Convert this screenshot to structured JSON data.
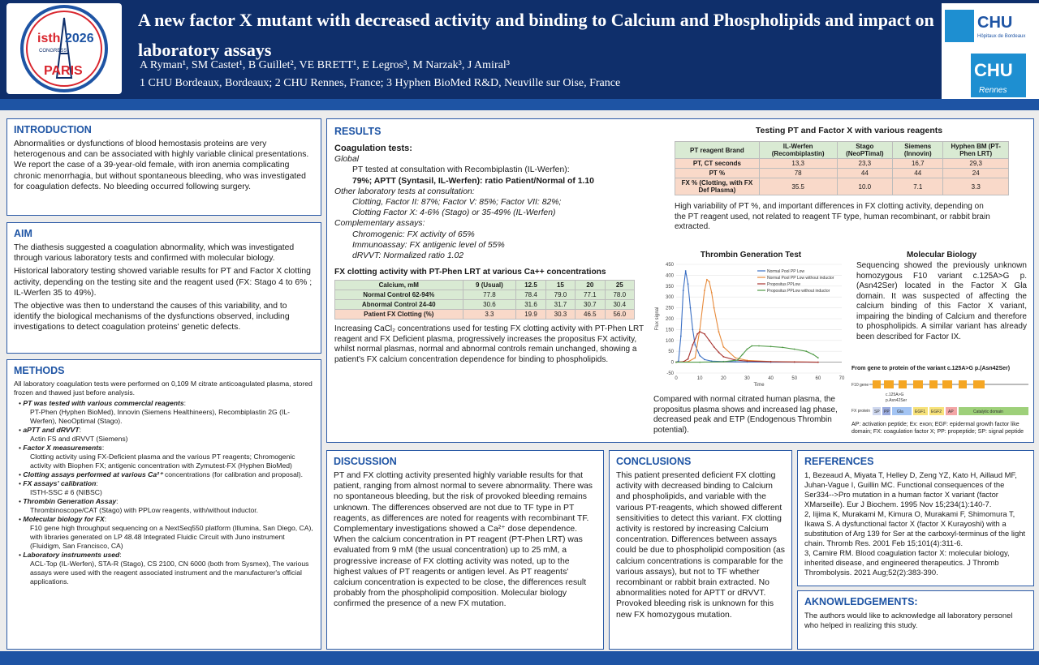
{
  "header": {
    "title": "A new factor X mutant with decreased activity and binding to Calcium and Phospholipids and impact on laboratory assays",
    "authors": "A Ryman¹, SM Castet¹, B Guillet², VE BRETT¹, E Legros³, M Narzak³, J Amiral³",
    "affiliations": "1 CHU Bordeaux, Bordeaux; 2 CHU Rennes, France; 3 Hyphen BioMed R&D, Neuville sur Oise, France",
    "logo_left": {
      "line1": "isth",
      "line2": "2026",
      "line3": "CONGRESS",
      "line4": "PARIS"
    },
    "logo_right": {
      "top1": "CHU",
      "top2": "Hôpitaux de Bordeaux",
      "bottom1": "CHU",
      "bottom2": "Rennes"
    }
  },
  "introduction": {
    "heading": "INTRODUCTION",
    "text": "Abnormalities or dysfunctions of blood hemostasis proteins are very heterogenous and can be associated with highly variable clinical presentations. We report the case of a 39-year-old female, with iron anemia complicating chronic menorrhagia, but without spontaneous bleeding, who was investigated for coagulation defects. No bleeding occurred following surgery."
  },
  "aim": {
    "heading": "AIM",
    "p1": "The diathesis suggested a coagulation abnormality, which was investigated through various laboratory tests and confirmed with molecular biology.",
    "p2": "Historical laboratory testing showed variable results for PT and Factor X clotting activity, depending on the testing site and the reagent used (FX: Stago 4 to 6% ; IL-Werfen 35 to 49%).",
    "p3": "The objective was then to understand the causes of this variability, and to identify the biological mechanisms of the dysfunctions observed, including investigations to detect coagulation proteins' genetic defects."
  },
  "methods": {
    "heading": "METHODS",
    "intro": "All laboratory coagulation tests were performed on 0,109 M citrate anticoagulated plasma, stored frozen and thawed just before analysis.",
    "items": [
      {
        "head": "PT was tested with various commercial reagents",
        "tail": ":",
        "sub": "PT-Phen (Hyphen BioMed), Innovin (Siemens Healthineers), Recombiplastin 2G (IL-Werfen), NeoOptimal (Stago)."
      },
      {
        "head": "aPTT and dRVVT",
        "tail": ":",
        "sub": "Actin FS and dRVVT (Siemens)"
      },
      {
        "head": "Factor X measurements",
        "tail": ":",
        "sub": "Clotting activity using FX-Deficient plasma and the various PT reagents; Chromogenic activity with Biophen FX; antigenic concentration with Zymutest-FX (Hyphen BioMed)"
      },
      {
        "head": "Clotting assays performed at various Ca²⁺",
        "tail": " concentrations (for calibration and proposal).",
        "sub": ""
      },
      {
        "head": "FX assays' calibration",
        "tail": ":",
        "sub": "ISTH-SSC # 6 (NIBSC)"
      },
      {
        "head": "Thrombin Generation Assay",
        "tail": ":",
        "sub": "Thrombinoscope/CAT (Stago) with PPLow reagents, with/without inductor."
      },
      {
        "head": "Molecular biology for FX",
        "tail": ":",
        "sub": "F10 gene high throughput sequencing on a NextSeq550 platform (Illumina, San Diego, CA), with libraries generated on LP 48.48 Integrated Fluidic Circuit with Juno instrument (Fluidigm, San Francisco, CA)"
      },
      {
        "head": "Laboratory instruments used",
        "tail": ":",
        "sub": "ACL-Top (IL-Werfen), STA-R (Stago), CS 2100, CN 6000 (both from Sysmex), The various assays were used with the reagent associated instrument and the manufacturer's official applications."
      }
    ]
  },
  "results": {
    "heading": "RESULTS",
    "coag_heading": "Coagulation tests:",
    "global_label": "Global",
    "global_line1": "PT tested at consultation with Recombiplastin (IL-Werfen):",
    "global_line2": "79%; APTT (Syntasil, IL-Werfen): ratio Patient/Normal of 1.10",
    "other_label": "Other laboratory tests at consultation:",
    "other_line1": "Clotting, Factor II: 87%; Factor V: 85%; Factor VII: 82%;",
    "other_line2": "Clotting Factor X: 4-6% (Stago) or 35-49% (IL-Werfen)",
    "comp_label": "Complementary assays:",
    "comp_line1": "Chromogenic: FX activity of 65%",
    "comp_line2": "Immunoassay: FX antigenic level of 55%",
    "comp_line3": "dRVVT: Normalized ratio 1.02",
    "ca_table_title": "FX clotting activity with PT-Phen LRT at various Ca++ concentrations",
    "ca_table": {
      "corner": "Calcium, mM",
      "cols": [
        "9 (Usual)",
        "12.5",
        "15",
        "20",
        "25"
      ],
      "rows": [
        {
          "label": "Normal Control 62-94%",
          "values": [
            "77.8",
            "78.4",
            "79.0",
            "77.1",
            "78.0"
          ]
        },
        {
          "label": "Abnormal Control 24-40",
          "values": [
            "30.6",
            "31.6",
            "31.7",
            "30.7",
            "30.4"
          ]
        },
        {
          "label": "Patient FX Clotting (%)",
          "values": [
            "3.3",
            "19.9",
            "30.3",
            "46.5",
            "56.0"
          ]
        }
      ]
    },
    "ca_caption": "Increasing CaCl₂ concentrations used for testing FX clotting activity with PT-Phen LRT reagent and FX Deficient plasma, progressively increases the propositus FX activity, whilst normal plasmas, normal and abnormal controls remain unchanged, showing a patient's FX calcium concentration dependence for binding to phospholipids.",
    "pt_table_title": "Testing PT and Factor X with various reagents",
    "pt_table": {
      "corner": "PT reagent Brand",
      "cols": [
        "IL-Werfen (Recombiplastin)",
        "Stago (NeoPTimal)",
        "Siemens (Innovin)",
        "Hyphen BM (PT-Phen LRT)"
      ],
      "rows": [
        {
          "label": "PT, CT seconds",
          "values": [
            "13,3",
            "23,3",
            "16,7",
            "29,3"
          ]
        },
        {
          "label": "PT %",
          "values": [
            "78",
            "44",
            "44",
            "24"
          ]
        },
        {
          "label": "FX % (Clotting, with FX Def Plasma)",
          "values": [
            "35.5",
            "10.0",
            "7.1",
            "3.3"
          ]
        }
      ]
    },
    "pt_caption": "High variability of PT %, and important differences in FX clotting activity, depending on the PT reagent used, not related to reagent TF type, human recombinant, or rabbit brain extracted.",
    "tg_title": "Thrombin Generation Test",
    "tg_caption": "Compared with normal citrated human plasma, the propositus plasma shows and increased lag phase, decreased peak and ETP (Endogenous Thrombin potential).",
    "mol_title": "Molecular Biology",
    "mol_text": "Sequencing showed the previously unknown homozygous F10 variant c.125A>G p.(Asn42Ser) located in the Factor X Gla domain. It was suspected of affecting the calcium binding of this Factor X variant, impairing the binding of Calcium and therefore to phospholipids. A similar variant has already been described for Factor IX.",
    "gene_title": "From gene to protein of the variant c.125A>G p.(Asn42Ser)",
    "gene_labels": {
      "gene": "F10 gene",
      "protein": "FX protein",
      "mut1": "c.125A>G",
      "mut2": "p.Asn42Ser",
      "dom_sp": "SP",
      "dom_pp": "PP",
      "dom_gla": "Gla",
      "dom_egf1": "EGF1",
      "dom_egf2": "EGF2",
      "dom_ap": "AP",
      "dom_cat": "Catalytic domain"
    },
    "gene_caption": "AP: activation peptide; Ex: exon; EGF: epidermal growth factor like domain; FX: coagulation factor X; PP: propeptide; SP: signal peptide"
  },
  "chart_data": {
    "type": "line",
    "title": "Thrombin Generation Test",
    "xlabel": "Time",
    "ylabel": "Flux signal",
    "xlim": [
      0,
      70
    ],
    "ylim": [
      -50,
      450
    ],
    "xticks": [
      0,
      10,
      20,
      30,
      40,
      50,
      60,
      70
    ],
    "yticks": [
      -50,
      0,
      50,
      100,
      150,
      200,
      250,
      300,
      350,
      400,
      450
    ],
    "legend": "top-right",
    "series": [
      {
        "name": "Normal Pool PP Low",
        "color": "#3a6fc4",
        "x": [
          0,
          1,
          2,
          3,
          4,
          5,
          6,
          7,
          8,
          10,
          12,
          15,
          20,
          25,
          30,
          40,
          50,
          60
        ],
        "y": [
          0,
          5,
          120,
          330,
          420,
          360,
          250,
          150,
          80,
          30,
          12,
          5,
          3,
          2,
          1,
          0,
          0,
          0
        ]
      },
      {
        "name": "Normal Pool PP Low without inductor",
        "color": "#e78a3a",
        "x": [
          0,
          5,
          8,
          10,
          12,
          13,
          14,
          15,
          16,
          18,
          20,
          25,
          30,
          40,
          50,
          60
        ],
        "y": [
          0,
          2,
          20,
          150,
          330,
          380,
          370,
          320,
          250,
          140,
          70,
          20,
          8,
          3,
          1,
          0
        ]
      },
      {
        "name": "Propositus PPLow",
        "color": "#a8332f",
        "x": [
          0,
          3,
          5,
          7,
          9,
          10,
          12,
          14,
          16,
          18,
          20,
          25,
          30,
          40,
          50,
          60
        ],
        "y": [
          0,
          2,
          15,
          80,
          130,
          140,
          130,
          100,
          70,
          45,
          25,
          10,
          5,
          2,
          1,
          0
        ]
      },
      {
        "name": "Propositus PPLow without inductor",
        "color": "#4f9a45",
        "x": [
          0,
          10,
          20,
          26,
          28,
          30,
          32,
          35,
          40,
          45,
          50,
          55,
          58,
          60
        ],
        "y": [
          0,
          0,
          2,
          10,
          35,
          60,
          75,
          75,
          72,
          68,
          60,
          50,
          35,
          20
        ]
      }
    ]
  },
  "discussion": {
    "heading": "DISCUSSION",
    "text": "PT and FX clotting activity presented highly variable results for that patient, ranging from almost normal to severe abnormality. There was no spontaneous bleeding, but the risk of provoked bleeding remains unknown. The differences observed are not due to TF type in PT reagents, as differences are noted for reagents with recombinant TF. Complementary investigations showed a Ca²⁺ dose dependence. When the calcium concentration in PT reagent (PT-Phen LRT) was evaluated from 9 mM (the usual concentration) up to 25 mM, a progressive increase of FX clotting activity was noted, up to the highest values of PT reagents or antigen level. As PT reagents' calcium concentration is expected to be close, the differences result probably from the phospholipid composition. Molecular biology confirmed the presence of a new FX mutation."
  },
  "conclusions": {
    "heading": "CONCLUSIONS",
    "text": "This patient presented deficient FX clotting activity with decreased binding to Calcium and phospholipids, and variable with the various PT-reagents, which showed different sensitivities to detect this variant. FX clotting activity is restored by increasing Calcium concentration. Differences between assays could be due to phospholipid composition (as calcium concentrations is comparable for the various assays), but not to TF whether recombinant or rabbit brain extracted. No abnormalities noted for APTT or dRVVT. Provoked bleeding risk is unknown for this new FX homozygous mutation."
  },
  "references": {
    "heading": "REFERENCES",
    "items": [
      "1, Bezeaud A, Miyata T, Helley D, Zeng YZ, Kato H, Aillaud MF, Juhan-Vague I, Guillin MC. Functional consequences of the Ser334-->Pro mutation in a human factor X variant (factor XMarseille). Eur J Biochem. 1995 Nov 15;234(1):140-7.",
      "2, Iijima K, Murakami M, Kimura O, Murakami F, Shimomura T, Ikawa S. A dysfunctional factor X (factor X Kurayoshi) with a substitution of Arg 139 for Ser at the carboxyl-terminus of the light chain. Thromb Res. 2001 Feb 15;101(4):311-6.",
      "3, Camire RM. Blood coagulation factor X: molecular biology, inherited disease, and engineered therapeutics. J Thromb Thrombolysis. 2021 Aug;52(2):383-390."
    ]
  },
  "acknowledgements": {
    "heading": "AKNOWLEDGEMENTS:",
    "text": "The authors would like to acknowledge all laboratory personel who helped in realizing this study."
  },
  "colors": {
    "navy": "#0f2f6b",
    "blue": "#1e54a4",
    "green": "#d9ead3",
    "pink": "#f9d9c9"
  }
}
